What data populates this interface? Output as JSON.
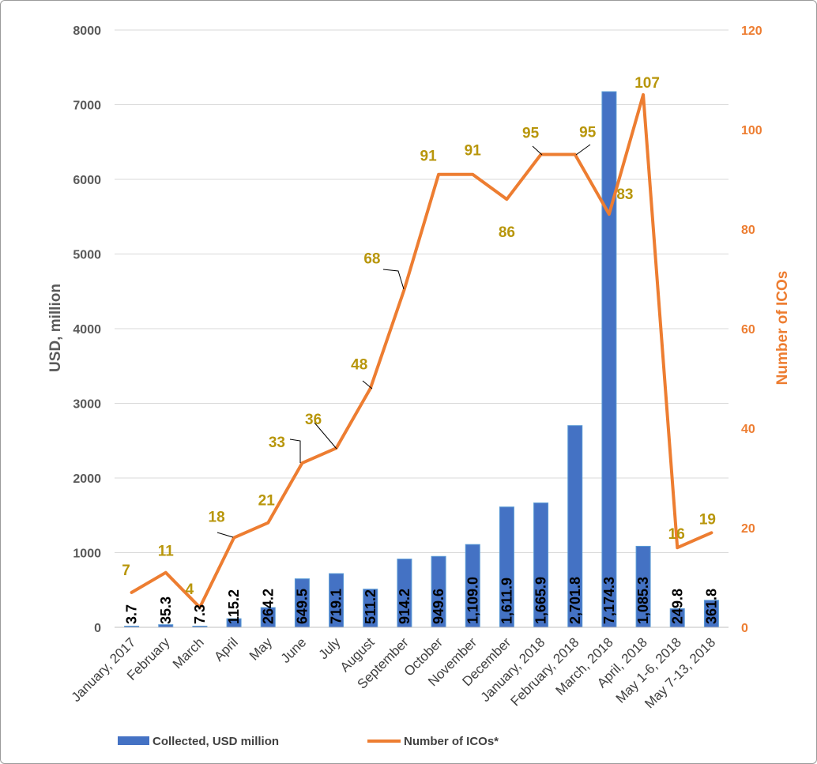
{
  "chart_data": {
    "type": "bar+line",
    "categories": [
      "January, 2017",
      "February",
      "March",
      "April",
      "May",
      "June",
      "July",
      "August",
      "September",
      "October",
      "November",
      "December",
      "January, 2018",
      "February, 2018",
      "March, 2018",
      "April, 2018",
      "May 1-6, 2018",
      "May 7-13, 2018"
    ],
    "series": [
      {
        "name": "Collected, USD million",
        "type": "bar",
        "axis": "left",
        "color": "#4472C4",
        "values": [
          3.7,
          35.3,
          7.3,
          115.2,
          264.2,
          649.5,
          719.1,
          511.2,
          914.2,
          949.6,
          1109.0,
          1611.9,
          1665.9,
          2701.8,
          7174.3,
          1085.3,
          249.8,
          361.8
        ],
        "labels": [
          "3.7",
          "35.3",
          "7.3",
          "115.2",
          "264.2",
          "649.5",
          "719.1",
          "511.2",
          "914.2",
          "949.6",
          "1,109.0",
          "1,611.9",
          "1,665.9",
          "2,701.8",
          "7,174.3",
          "1,085.3",
          "249.8",
          "361.8"
        ]
      },
      {
        "name": "Number of ICOs*",
        "type": "line",
        "axis": "right",
        "color": "#ED7D31",
        "label_color": "#B8960B",
        "values": [
          7,
          11,
          4,
          18,
          21,
          33,
          36,
          48,
          68,
          91,
          91,
          86,
          95,
          95,
          83,
          107,
          16,
          19
        ]
      }
    ],
    "ylabel_left": "USD, million",
    "ylabel_right": "Number of ICOs",
    "ylim_left": [
      0,
      8000
    ],
    "ylim_right": [
      0,
      120
    ],
    "yticks_left": [
      "0",
      "1000",
      "2000",
      "3000",
      "4000",
      "5000",
      "6000",
      "7000",
      "8000"
    ],
    "yticks_right": [
      "0",
      "20",
      "40",
      "60",
      "80",
      "100",
      "120"
    ],
    "grid": true,
    "legend_position": "bottom"
  }
}
